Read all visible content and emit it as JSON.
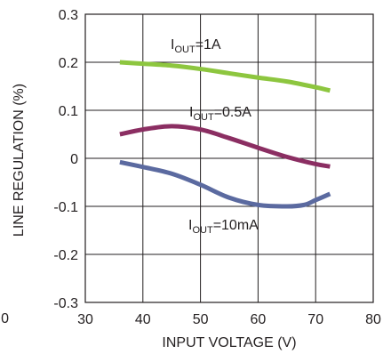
{
  "chart_data": {
    "type": "line",
    "title": "",
    "xlabel": "INPUT VOLTAGE (V)",
    "ylabel": "LINE REGULATION (%)",
    "xlim": [
      30,
      80
    ],
    "ylim": [
      -0.3,
      0.3
    ],
    "x_ticks": [
      "30",
      "40",
      "50",
      "60",
      "70",
      "80"
    ],
    "y_ticks": [
      "0.3",
      "0.2",
      "0.1",
      "0",
      "-0.1",
      "-0.2",
      "-0.3"
    ],
    "stray_tick_label": "0",
    "grid": true,
    "legend": "none",
    "series": [
      {
        "name": "I_OUT=1A",
        "color": "#8dc63f",
        "x": [
          36,
          40,
          45,
          50,
          55,
          60,
          65,
          70,
          72.5
        ],
        "y": [
          0.2,
          0.197,
          0.193,
          0.186,
          0.177,
          0.168,
          0.16,
          0.148,
          0.141
        ]
      },
      {
        "name": "I_OUT=0.5A",
        "color": "#8b2e62",
        "x": [
          36,
          40,
          45,
          50,
          55,
          60,
          65,
          70,
          72.5
        ],
        "y": [
          0.05,
          0.06,
          0.067,
          0.06,
          0.042,
          0.022,
          0.003,
          -0.012,
          -0.017
        ]
      },
      {
        "name": "I_OUT=10mA",
        "color": "#5b6aa0",
        "x": [
          36,
          40,
          45,
          50,
          55,
          60,
          65,
          68,
          70,
          72.5
        ],
        "y": [
          -0.008,
          -0.018,
          -0.032,
          -0.055,
          -0.082,
          -0.097,
          -0.1,
          -0.097,
          -0.087,
          -0.074
        ]
      }
    ],
    "annotations": [
      {
        "main": "I",
        "sub": "OUT",
        "rest": "=1A"
      },
      {
        "main": "I",
        "sub": "OUT",
        "rest": "=0.5A"
      },
      {
        "main": "I",
        "sub": "OUT",
        "rest": "=10mA"
      }
    ]
  }
}
